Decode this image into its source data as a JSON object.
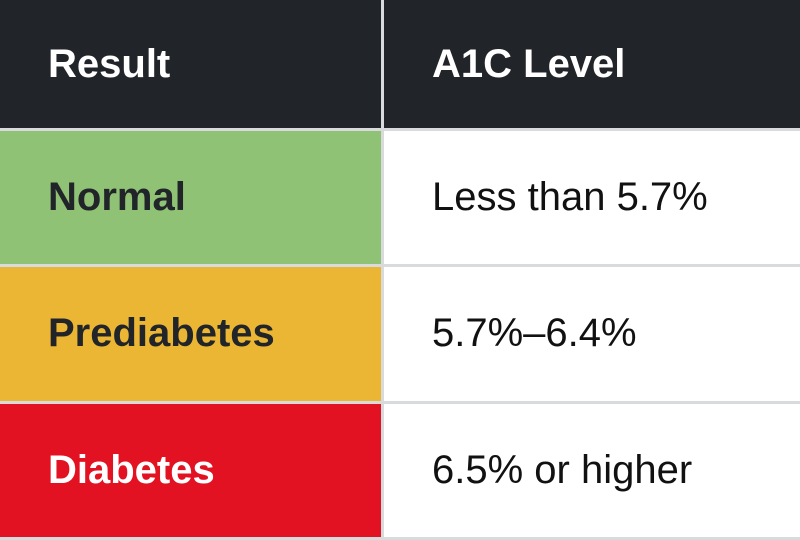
{
  "table": {
    "header": [
      "Result",
      "A1C Level"
    ],
    "rows": [
      [
        "Normal",
        "Less than 5.7%"
      ],
      [
        "Prediabetes",
        "5.7%–6.4%"
      ],
      [
        "Diabetes",
        "6.5% or higher"
      ]
    ]
  }
}
